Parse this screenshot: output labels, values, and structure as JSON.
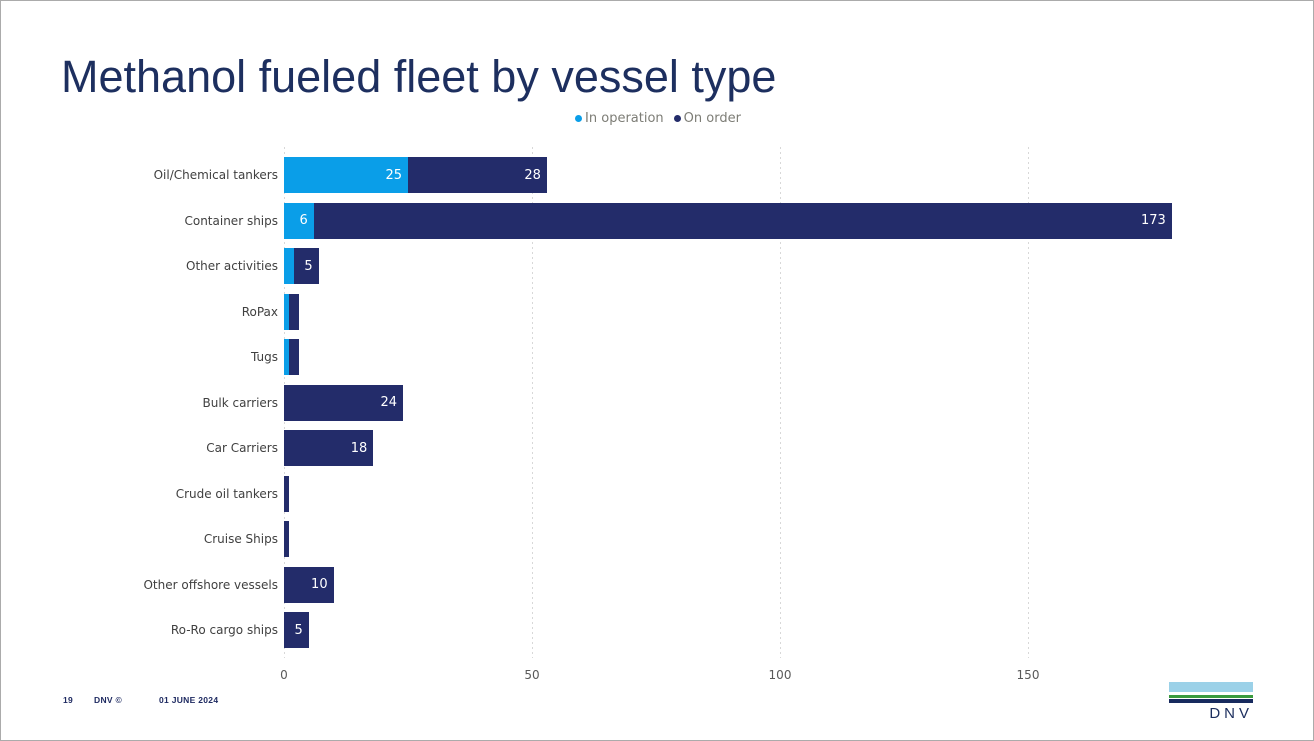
{
  "slide": {
    "title": "Methanol fueled fleet by vessel type",
    "footer": {
      "page_number": "19",
      "brand": "DNV ©",
      "date": "01 JUNE 2024"
    },
    "logo_text": "DNV"
  },
  "legend": [
    {
      "label": "In operation",
      "color": "#0a9ee8"
    },
    {
      "label": "On order",
      "color": "#232c6a"
    }
  ],
  "chart_data": {
    "type": "bar",
    "orientation": "horizontal",
    "stacked": true,
    "title": "Methanol fueled fleet by vessel type",
    "categories": [
      "Oil/Chemical tankers",
      "Container ships",
      "Other activities",
      "RoPax",
      "Tugs",
      "Bulk carriers",
      "Car Carriers",
      "Crude oil tankers",
      "Cruise Ships",
      "Other offshore vessels",
      "Ro-Ro cargo ships"
    ],
    "series": [
      {
        "name": "In operation",
        "color": "#0a9ee8",
        "values": [
          25,
          6,
          2,
          1,
          1,
          0,
          0,
          0,
          0,
          0,
          0
        ]
      },
      {
        "name": "On order",
        "color": "#232c6a",
        "values": [
          28,
          173,
          5,
          2,
          2,
          24,
          18,
          1,
          1,
          10,
          5
        ]
      }
    ],
    "x_ticks": [
      0,
      50,
      100,
      150
    ],
    "xlim": [
      0,
      203
    ],
    "gridlines": "vertical-dotted",
    "legend_position": "top-center",
    "value_label_threshold": 5
  },
  "colors": {
    "accent_light_blue": "#0a9ee8",
    "accent_navy": "#232c6a",
    "title_text": "#1d2f5f",
    "category_label": "#404040",
    "axis_label": "#595959",
    "legend_text": "#7d7d76",
    "gridline": "#d8d8d8",
    "value_label": "#ffffff",
    "footer_text": "#1e2a61",
    "logo_light_blue": "#9bd1e8",
    "logo_green": "#3a9a3e",
    "logo_navy": "#172a5e"
  }
}
